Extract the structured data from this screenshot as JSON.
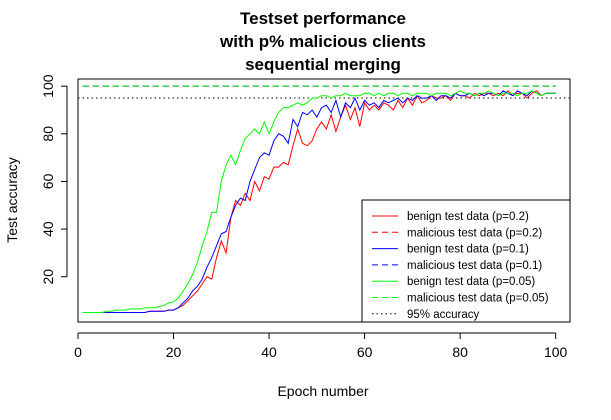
{
  "chart_data": {
    "type": "line",
    "title": [
      "Testset performance",
      "with p% malicious clients",
      "sequential merging"
    ],
    "xlabel": "Epoch number",
    "ylabel": "Test accuracy",
    "xlim": [
      0,
      103
    ],
    "ylim": [
      1,
      103
    ],
    "xticks": [
      0,
      20,
      40,
      60,
      80,
      100
    ],
    "yticks": [
      20,
      40,
      60,
      80,
      100
    ],
    "legend_position": "bottom-right",
    "grid": false,
    "x": [
      1,
      2,
      3,
      4,
      5,
      6,
      7,
      8,
      9,
      10,
      11,
      12,
      13,
      14,
      15,
      16,
      17,
      18,
      19,
      20,
      21,
      22,
      23,
      24,
      25,
      26,
      27,
      28,
      29,
      30,
      31,
      32,
      33,
      34,
      35,
      36,
      37,
      38,
      39,
      40,
      41,
      42,
      43,
      44,
      45,
      46,
      47,
      48,
      49,
      50,
      51,
      52,
      53,
      54,
      55,
      56,
      57,
      58,
      59,
      60,
      61,
      62,
      63,
      64,
      65,
      66,
      67,
      68,
      69,
      70,
      71,
      72,
      73,
      74,
      75,
      76,
      77,
      78,
      79,
      80,
      81,
      82,
      83,
      84,
      85,
      86,
      87,
      88,
      89,
      90,
      91,
      92,
      93,
      94,
      95,
      96,
      97,
      98,
      99,
      100
    ],
    "series": [
      {
        "name": "benign test data (p=0.2)",
        "color": "#ff0000",
        "dash": "solid",
        "values": [
          5,
          5,
          5,
          5,
          5,
          5,
          5,
          5,
          5,
          5,
          5,
          5,
          5,
          5,
          5.5,
          5.5,
          5.5,
          5.5,
          6,
          6,
          7,
          8,
          10,
          12,
          14,
          17,
          20,
          19,
          28,
          35,
          30,
          45,
          52,
          50,
          55,
          52,
          60,
          56,
          62,
          61,
          66,
          66,
          68,
          67,
          75,
          82,
          76,
          75,
          77,
          82,
          85,
          82,
          88,
          81,
          87,
          92,
          86,
          91,
          83,
          93,
          90,
          92,
          90,
          93,
          92,
          90,
          94,
          91,
          95,
          92,
          96,
          93,
          94,
          96,
          95,
          95,
          96,
          94,
          97,
          96,
          96,
          95,
          97,
          96,
          97,
          97,
          96,
          97,
          96,
          98,
          96,
          97,
          97,
          95,
          97,
          98,
          96,
          97,
          97,
          97
        ]
      },
      {
        "name": "malicious test data (p=0.2)",
        "color": "#ff0000",
        "dash": "dashed",
        "values": [
          100,
          100,
          100,
          100,
          100,
          100,
          100,
          100,
          100,
          100,
          100,
          100,
          100,
          100,
          100,
          100,
          100,
          100,
          100,
          100,
          100,
          100,
          100,
          100,
          100,
          100,
          100,
          100,
          100,
          100,
          100,
          100,
          100,
          100,
          100,
          100,
          100,
          100,
          100,
          100,
          100,
          100,
          100,
          100,
          100,
          100,
          100,
          100,
          100,
          100,
          100,
          100,
          100,
          100,
          100,
          100,
          100,
          100,
          100,
          100,
          100,
          100,
          100,
          100,
          100,
          100,
          100,
          100,
          100,
          100,
          100,
          100,
          100,
          100,
          100,
          100,
          100,
          100,
          100,
          100,
          100,
          100,
          100,
          100,
          100,
          100,
          100,
          100,
          100,
          100,
          100,
          100,
          100,
          100,
          100,
          100,
          100,
          100,
          100,
          100
        ]
      },
      {
        "name": "benign test data (p=0.1)",
        "color": "#0000ff",
        "dash": "solid",
        "values": [
          5,
          5,
          5,
          5,
          5,
          5,
          5,
          5,
          5,
          5,
          5,
          5,
          5,
          5,
          5.5,
          5.5,
          5.5,
          5.5,
          6,
          6,
          7,
          9,
          11,
          14,
          16,
          19,
          24,
          28,
          33,
          38,
          39,
          45,
          50,
          53,
          52,
          60,
          65,
          70,
          72,
          71,
          77,
          80,
          79,
          76,
          86,
          83,
          89,
          88,
          90,
          87,
          91,
          92,
          89,
          94,
          87,
          93,
          91,
          95,
          90,
          94,
          92,
          93,
          91,
          94,
          93,
          94,
          95,
          93,
          95,
          94,
          96,
          95,
          95,
          96,
          94,
          96,
          96,
          95,
          97,
          96,
          96,
          97,
          96,
          97,
          96,
          97,
          97,
          96,
          98,
          97,
          96,
          98,
          97,
          96,
          98,
          97,
          96,
          97,
          97,
          97
        ]
      },
      {
        "name": "malicious test data (p=0.1)",
        "color": "#0000ff",
        "dash": "dashed",
        "values": [
          100,
          100,
          100,
          100,
          100,
          100,
          100,
          100,
          100,
          100,
          100,
          100,
          100,
          100,
          100,
          100,
          100,
          100,
          100,
          100,
          100,
          100,
          100,
          100,
          100,
          100,
          100,
          100,
          100,
          100,
          100,
          100,
          100,
          100,
          100,
          100,
          100,
          100,
          100,
          100,
          100,
          100,
          100,
          100,
          100,
          100,
          100,
          100,
          100,
          100,
          100,
          100,
          100,
          100,
          100,
          100,
          100,
          100,
          100,
          100,
          100,
          100,
          100,
          100,
          100,
          100,
          100,
          100,
          100,
          100,
          100,
          100,
          100,
          100,
          100,
          100,
          100,
          100,
          100,
          100,
          100,
          100,
          100,
          100,
          100,
          100,
          100,
          100,
          100,
          100,
          100,
          100,
          100,
          100,
          100,
          100,
          100,
          100,
          100,
          100
        ]
      },
      {
        "name": "benign test data (p=0.05)",
        "color": "#00ff00",
        "dash": "solid",
        "values": [
          5,
          5,
          5,
          5,
          5,
          5.5,
          5.5,
          6,
          6,
          6,
          6.5,
          6.5,
          6.5,
          7,
          7,
          7,
          7.5,
          8,
          9,
          9.5,
          11,
          14,
          17,
          21,
          26,
          33,
          39,
          47,
          47,
          60,
          67,
          71,
          67,
          73,
          78,
          80,
          82,
          80,
          85,
          80,
          85,
          89,
          91,
          91,
          92,
          93,
          92,
          93,
          95,
          95,
          96,
          96,
          95,
          96,
          96,
          97,
          96,
          96,
          96,
          97,
          97,
          96,
          97,
          96,
          97,
          97,
          96,
          97,
          97,
          96,
          97,
          97,
          97,
          96,
          97,
          97,
          97,
          96,
          97,
          98,
          97,
          97,
          96,
          97,
          97,
          98,
          97,
          96,
          97,
          97,
          97,
          96,
          97,
          97,
          98,
          97,
          96,
          97,
          97,
          97
        ]
      },
      {
        "name": "malicious test data (p=0.05)",
        "color": "#00ff00",
        "dash": "dashed",
        "values": [
          100,
          100,
          100,
          100,
          100,
          100,
          100,
          100,
          100,
          100,
          100,
          100,
          100,
          100,
          100,
          100,
          100,
          100,
          100,
          100,
          100,
          100,
          100,
          100,
          100,
          100,
          100,
          100,
          100,
          100,
          100,
          100,
          100,
          100,
          100,
          100,
          100,
          100,
          100,
          100,
          100,
          100,
          100,
          100,
          100,
          100,
          100,
          100,
          100,
          100,
          100,
          100,
          100,
          100,
          100,
          100,
          100,
          100,
          100,
          100,
          100,
          100,
          100,
          100,
          100,
          100,
          100,
          100,
          100,
          100,
          100,
          100,
          100,
          100,
          100,
          100,
          100,
          100,
          100,
          100,
          100,
          100,
          100,
          100,
          100,
          100,
          100,
          100,
          100,
          100,
          100,
          100,
          100,
          100,
          100,
          100,
          100,
          100,
          100,
          100
        ]
      }
    ],
    "reference_line": {
      "name": "95% accuracy",
      "y": 95,
      "color": "#000000",
      "dash": "dotted"
    },
    "legend": [
      {
        "label": "benign test data (p=0.2)",
        "color": "#ff0000",
        "dash": "solid"
      },
      {
        "label": "malicious test data (p=0.2)",
        "color": "#ff0000",
        "dash": "dashed"
      },
      {
        "label": "benign test data (p=0.1)",
        "color": "#0000ff",
        "dash": "solid"
      },
      {
        "label": "malicious test data (p=0.1)",
        "color": "#0000ff",
        "dash": "dashed"
      },
      {
        "label": "benign test data (p=0.05)",
        "color": "#00ff00",
        "dash": "solid"
      },
      {
        "label": "malicious test data (p=0.05)",
        "color": "#00ff00",
        "dash": "dashed"
      },
      {
        "label": "95% accuracy",
        "color": "#000000",
        "dash": "dotted"
      }
    ]
  }
}
